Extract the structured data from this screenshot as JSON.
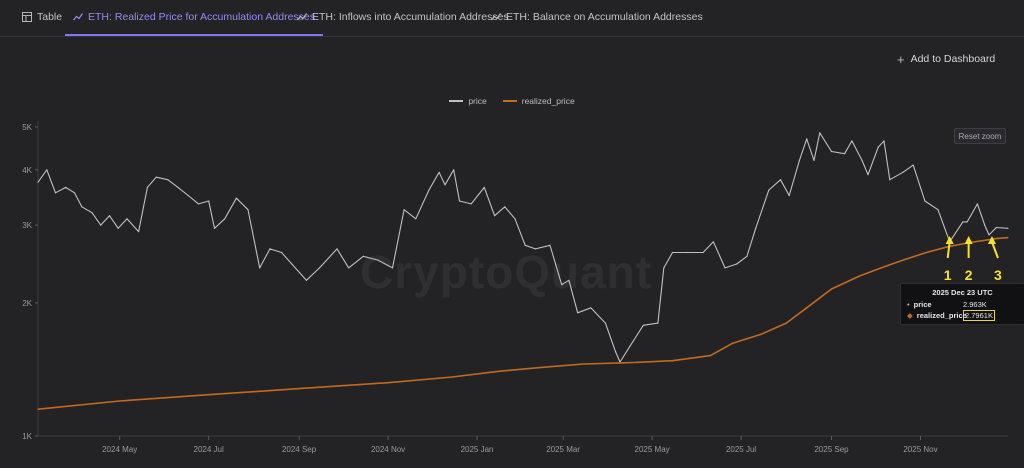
{
  "tabs": [
    {
      "label": "Table",
      "icon": "table-icon"
    },
    {
      "label": "ETH: Realized Price for Accumulation Addresses",
      "icon": "line-chart-icon",
      "active": true
    },
    {
      "label": "ETH: Inflows into Accumulation Addresses",
      "icon": "line-chart-icon"
    },
    {
      "label": "ETH: Balance on Accumulation Addresses",
      "icon": "line-chart-icon"
    }
  ],
  "toolbar": {
    "add_to_dashboard": "Add to Dashboard"
  },
  "reset_zoom_label": "Reset zoom",
  "watermark": "CryptoQuant",
  "tooltip": {
    "date": "2025 Dec 23 UTC",
    "price_label": "price",
    "price_value": "2.963K",
    "realized_label": "realized_price",
    "realized_value": "2.7961K"
  },
  "annotations": [
    "1",
    "2",
    "3"
  ],
  "colors": {
    "price": "#bfbfc4",
    "realized_price": "#c26a1f",
    "annotation": "#f5e12a",
    "active_tab": "#7d79f0"
  },
  "chart_data": {
    "type": "line",
    "scale": "log",
    "ylim": [
      1000,
      5000
    ],
    "y_ticks": [
      {
        "v": 1000,
        "label": "1K"
      },
      {
        "v": 2000,
        "label": "2K"
      },
      {
        "v": 3000,
        "label": "3K"
      },
      {
        "v": 4000,
        "label": "4K"
      },
      {
        "v": 5000,
        "label": "5K"
      }
    ],
    "x_range": [
      "2024-03-06",
      "2025-12-31"
    ],
    "x_ticks": [
      {
        "d": "2024-05-01",
        "label": "2024 May"
      },
      {
        "d": "2024-07-01",
        "label": "2024 Jul"
      },
      {
        "d": "2024-09-01",
        "label": "2024 Sep"
      },
      {
        "d": "2024-11-01",
        "label": "2024 Nov"
      },
      {
        "d": "2025-01-01",
        "label": "2025 Jan"
      },
      {
        "d": "2025-03-01",
        "label": "2025 Mar"
      },
      {
        "d": "2025-05-01",
        "label": "2025 May"
      },
      {
        "d": "2025-07-01",
        "label": "2025 Jul"
      },
      {
        "d": "2025-09-01",
        "label": "2025 Sep"
      },
      {
        "d": "2025-11-01",
        "label": "2025 Nov"
      }
    ],
    "legend": "top-center",
    "grid": false,
    "series": [
      {
        "name": "price",
        "points": [
          [
            "2024-03-06",
            3750
          ],
          [
            "2024-03-12",
            4000
          ],
          [
            "2024-03-18",
            3550
          ],
          [
            "2024-03-25",
            3650
          ],
          [
            "2024-03-31",
            3550
          ],
          [
            "2024-04-05",
            3300
          ],
          [
            "2024-04-12",
            3200
          ],
          [
            "2024-04-18",
            3000
          ],
          [
            "2024-04-24",
            3150
          ],
          [
            "2024-04-30",
            2950
          ],
          [
            "2024-05-06",
            3100
          ],
          [
            "2024-05-14",
            2900
          ],
          [
            "2024-05-20",
            3650
          ],
          [
            "2024-05-26",
            3850
          ],
          [
            "2024-06-03",
            3800
          ],
          [
            "2024-06-10",
            3650
          ],
          [
            "2024-06-17",
            3500
          ],
          [
            "2024-06-24",
            3350
          ],
          [
            "2024-07-01",
            3400
          ],
          [
            "2024-07-05",
            2950
          ],
          [
            "2024-07-12",
            3100
          ],
          [
            "2024-07-20",
            3450
          ],
          [
            "2024-07-28",
            3250
          ],
          [
            "2024-08-05",
            2400
          ],
          [
            "2024-08-12",
            2650
          ],
          [
            "2024-08-20",
            2600
          ],
          [
            "2024-08-27",
            2450
          ],
          [
            "2024-09-06",
            2250
          ],
          [
            "2024-09-15",
            2400
          ],
          [
            "2024-09-27",
            2650
          ],
          [
            "2024-10-05",
            2400
          ],
          [
            "2024-10-15",
            2550
          ],
          [
            "2024-10-25",
            2500
          ],
          [
            "2024-11-04",
            2400
          ],
          [
            "2024-11-12",
            3250
          ],
          [
            "2024-11-20",
            3100
          ],
          [
            "2024-11-29",
            3600
          ],
          [
            "2024-12-06",
            3950
          ],
          [
            "2024-12-10",
            3700
          ],
          [
            "2024-12-16",
            4000
          ],
          [
            "2024-12-20",
            3400
          ],
          [
            "2024-12-28",
            3350
          ],
          [
            "2025-01-06",
            3650
          ],
          [
            "2025-01-13",
            3150
          ],
          [
            "2025-01-20",
            3300
          ],
          [
            "2025-01-27",
            3100
          ],
          [
            "2025-02-03",
            2700
          ],
          [
            "2025-02-10",
            2650
          ],
          [
            "2025-02-20",
            2700
          ],
          [
            "2025-02-28",
            2200
          ],
          [
            "2025-03-05",
            2250
          ],
          [
            "2025-03-11",
            1900
          ],
          [
            "2025-03-20",
            1950
          ],
          [
            "2025-03-30",
            1800
          ],
          [
            "2025-04-06",
            1550
          ],
          [
            "2025-04-09",
            1470
          ],
          [
            "2025-04-16",
            1600
          ],
          [
            "2025-04-25",
            1780
          ],
          [
            "2025-05-05",
            1800
          ],
          [
            "2025-05-09",
            2400
          ],
          [
            "2025-05-15",
            2600
          ],
          [
            "2025-05-25",
            2600
          ],
          [
            "2025-06-05",
            2600
          ],
          [
            "2025-06-12",
            2750
          ],
          [
            "2025-06-20",
            2400
          ],
          [
            "2025-06-28",
            2450
          ],
          [
            "2025-07-05",
            2550
          ],
          [
            "2025-07-11",
            2950
          ],
          [
            "2025-07-20",
            3600
          ],
          [
            "2025-07-28",
            3800
          ],
          [
            "2025-08-03",
            3500
          ],
          [
            "2025-08-10",
            4200
          ],
          [
            "2025-08-15",
            4700
          ],
          [
            "2025-08-20",
            4200
          ],
          [
            "2025-08-24",
            4850
          ],
          [
            "2025-09-01",
            4400
          ],
          [
            "2025-09-10",
            4350
          ],
          [
            "2025-09-15",
            4650
          ],
          [
            "2025-09-22",
            4200
          ],
          [
            "2025-09-26",
            3900
          ],
          [
            "2025-10-03",
            4500
          ],
          [
            "2025-10-07",
            4650
          ],
          [
            "2025-10-11",
            3800
          ],
          [
            "2025-10-20",
            3950
          ],
          [
            "2025-10-27",
            4100
          ],
          [
            "2025-11-04",
            3400
          ],
          [
            "2025-11-13",
            3250
          ],
          [
            "2025-11-21",
            2750
          ],
          [
            "2025-11-30",
            3050
          ],
          [
            "2025-12-03",
            3050
          ],
          [
            "2025-12-10",
            3350
          ],
          [
            "2025-12-15",
            3000
          ],
          [
            "2025-12-18",
            2850
          ],
          [
            "2025-12-23",
            2963
          ],
          [
            "2025-12-31",
            2950
          ]
        ]
      },
      {
        "name": "realized_price",
        "points": [
          [
            "2024-03-06",
            1150
          ],
          [
            "2024-05-01",
            1200
          ],
          [
            "2024-07-01",
            1240
          ],
          [
            "2024-09-01",
            1280
          ],
          [
            "2024-11-01",
            1320
          ],
          [
            "2024-12-15",
            1360
          ],
          [
            "2025-01-15",
            1400
          ],
          [
            "2025-02-15",
            1430
          ],
          [
            "2025-03-15",
            1455
          ],
          [
            "2025-04-15",
            1465
          ],
          [
            "2025-05-15",
            1480
          ],
          [
            "2025-06-10",
            1520
          ],
          [
            "2025-06-25",
            1620
          ],
          [
            "2025-07-15",
            1700
          ],
          [
            "2025-08-01",
            1800
          ],
          [
            "2025-08-15",
            1950
          ],
          [
            "2025-09-01",
            2150
          ],
          [
            "2025-09-20",
            2300
          ],
          [
            "2025-10-05",
            2400
          ],
          [
            "2025-10-20",
            2500
          ],
          [
            "2025-11-05",
            2600
          ],
          [
            "2025-11-20",
            2680
          ],
          [
            "2025-12-05",
            2740
          ],
          [
            "2025-12-23",
            2796
          ],
          [
            "2025-12-31",
            2810
          ]
        ]
      }
    ]
  }
}
